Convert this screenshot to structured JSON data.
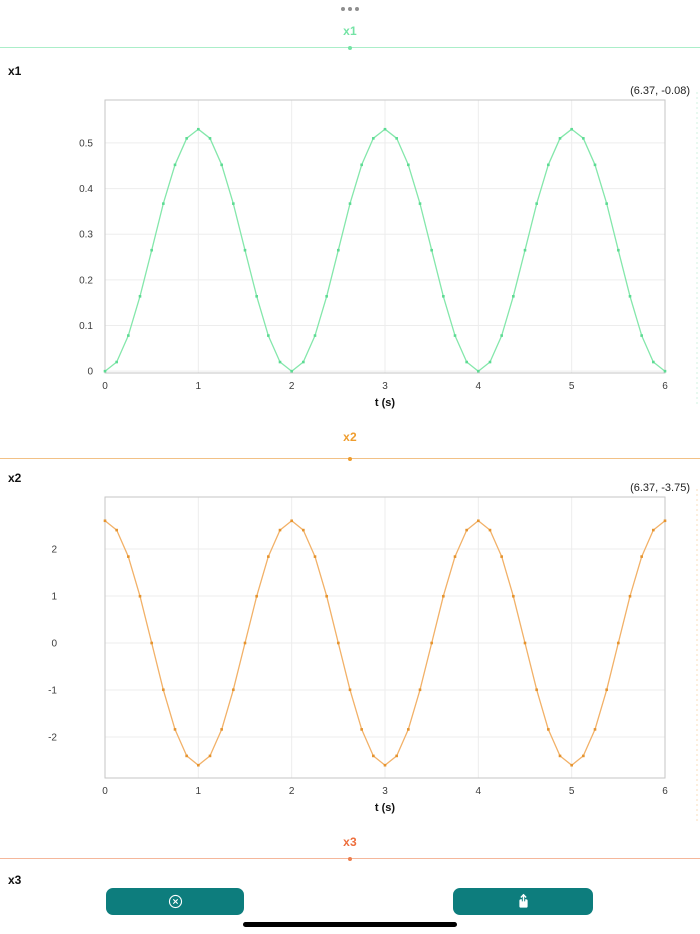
{
  "window": {
    "controls_icon": "ellipsis-icon"
  },
  "sections": {
    "x1": {
      "header_label": "x1",
      "row_label": "x1",
      "accent": "#74e3a5",
      "divider_color": "#abeec9",
      "handle_color": "#74e3a5"
    },
    "x2": {
      "header_label": "x2",
      "row_label": "x2",
      "accent": "#ef9d2e",
      "divider_color": "#f2c186",
      "handle_color": "#ef9d2e"
    },
    "x3": {
      "header_label": "x3",
      "row_label": "x3",
      "accent": "#ed6d3b",
      "divider_color": "#f5b79b",
      "handle_color": "#ed7f4e"
    }
  },
  "footer": {
    "button_color": "#0d7d7d",
    "buttons": [
      {
        "name": "close",
        "icon": "circle-x-icon"
      },
      {
        "name": "share",
        "icon": "share-icon"
      }
    ],
    "home_indicator_color": "#000000"
  },
  "chart_data": [
    {
      "id": "x1",
      "type": "line",
      "title": "",
      "xlabel": "t (s)",
      "ylabel": "",
      "xlim": [
        0,
        6
      ],
      "ylim": [
        -0.004,
        0.594
      ],
      "xticks": [
        0,
        1,
        2,
        3,
        4,
        5,
        6
      ],
      "xtick_labels": [
        "0",
        "1",
        "2",
        "3",
        "4",
        "5",
        "6"
      ],
      "yticks": [
        0,
        0.1,
        0.2,
        0.3,
        0.4,
        0.5
      ],
      "ytick_labels": [
        "0",
        "0.1",
        "0.2",
        "0.3",
        "0.4",
        "0.5"
      ],
      "grid": true,
      "legend": "none",
      "cursor_annotation": "(6.37, -0.08)",
      "line_color": "#84e7ab",
      "marker_color": "#5cdb93",
      "edge_color": "#bfefd4",
      "t": [
        0,
        0.125,
        0.25,
        0.375,
        0.5,
        0.625,
        0.75,
        0.875,
        1,
        1.125,
        1.25,
        1.375,
        1.5,
        1.625,
        1.75,
        1.875,
        2,
        2.125,
        2.25,
        2.375,
        2.5,
        2.625,
        2.75,
        2.875,
        3,
        3.125,
        3.25,
        3.375,
        3.5,
        3.625,
        3.75,
        3.875,
        4,
        4.125,
        4.25,
        4.375,
        4.5,
        4.625,
        4.75,
        4.875,
        5,
        5.125,
        5.25,
        5.375,
        5.5,
        5.625,
        5.75,
        5.875,
        6
      ],
      "values": [
        0,
        0.02,
        0.078,
        0.164,
        0.265,
        0.367,
        0.452,
        0.51,
        0.53,
        0.51,
        0.452,
        0.367,
        0.265,
        0.164,
        0.078,
        0.02,
        0,
        0.02,
        0.078,
        0.164,
        0.265,
        0.367,
        0.452,
        0.51,
        0.53,
        0.51,
        0.452,
        0.367,
        0.265,
        0.164,
        0.078,
        0.02,
        0,
        0.02,
        0.078,
        0.164,
        0.265,
        0.367,
        0.452,
        0.51,
        0.53,
        0.51,
        0.452,
        0.367,
        0.265,
        0.164,
        0.078,
        0.02,
        0
      ]
    },
    {
      "id": "x2",
      "type": "line",
      "title": "",
      "xlabel": "t (s)",
      "ylabel": "",
      "xlim": [
        0,
        6
      ],
      "ylim": [
        -2.872,
        3.106
      ],
      "xticks": [
        0,
        1,
        2,
        3,
        4,
        5,
        6
      ],
      "xtick_labels": [
        "0",
        "1",
        "2",
        "3",
        "4",
        "5",
        "6"
      ],
      "yticks": [
        -2,
        -1,
        0,
        1,
        2
      ],
      "ytick_labels": [
        "-2",
        "-1",
        "0",
        "1",
        "2"
      ],
      "grid": true,
      "legend": "none",
      "cursor_annotation": "(6.37, -3.75)",
      "line_color": "#f2b168",
      "marker_color": "#e5932d",
      "edge_color": "#f6cf9f",
      "t": [
        0,
        0.125,
        0.25,
        0.375,
        0.5,
        0.625,
        0.75,
        0.875,
        1,
        1.125,
        1.25,
        1.375,
        1.5,
        1.625,
        1.75,
        1.875,
        2,
        2.125,
        2.25,
        2.375,
        2.5,
        2.625,
        2.75,
        2.875,
        3,
        3.125,
        3.25,
        3.375,
        3.5,
        3.625,
        3.75,
        3.875,
        4,
        4.125,
        4.25,
        4.375,
        4.5,
        4.625,
        4.75,
        4.875,
        5,
        5.125,
        5.25,
        5.375,
        5.5,
        5.625,
        5.75,
        5.875,
        6
      ],
      "values": [
        2.6,
        2.402,
        1.838,
        0.995,
        0,
        -0.995,
        -1.838,
        -2.402,
        -2.6,
        -2.402,
        -1.838,
        -0.995,
        0,
        0.995,
        1.838,
        2.402,
        2.6,
        2.402,
        1.838,
        0.995,
        0,
        -0.995,
        -1.838,
        -2.402,
        -2.6,
        -2.402,
        -1.838,
        -0.995,
        0,
        0.995,
        1.838,
        2.402,
        2.6,
        2.402,
        1.838,
        0.995,
        0,
        -0.995,
        -1.838,
        -2.402,
        -2.6,
        -2.402,
        -1.838,
        -0.995,
        0,
        0.995,
        1.838,
        2.402,
        2.6
      ]
    }
  ]
}
